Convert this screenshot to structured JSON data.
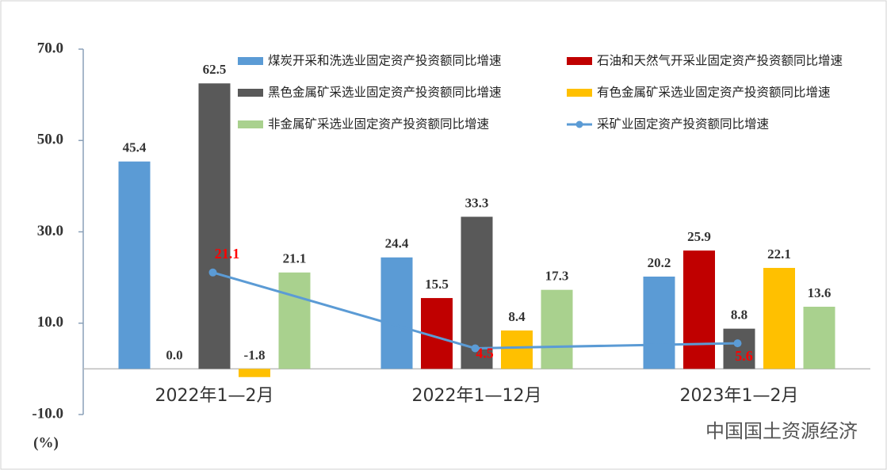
{
  "chart_data": {
    "type": "bar",
    "categories": [
      "2022年1—2月",
      "2022年1—12月",
      "2023年1—2月"
    ],
    "series": [
      {
        "name": "煤炭开采和洗选业固定资产投资额同比增速",
        "color": "#5b9bd5",
        "values": [
          45.4,
          24.4,
          20.2
        ],
        "value_labels": [
          "45.4",
          "24.4",
          "20.2"
        ]
      },
      {
        "name": "石油和天然气开采业固定资产投资额同比增速",
        "color": "#c00000",
        "values": [
          0,
          15.5,
          25.9
        ],
        "value_labels": [
          "0.0",
          "15.5",
          "25.9"
        ]
      },
      {
        "name": "黑色金属矿采选业固定资产投资额同比增速",
        "color": "#595959",
        "values": [
          62.5,
          33.3,
          8.8
        ],
        "value_labels": [
          "62.5",
          "33.3",
          "8.8"
        ]
      },
      {
        "name": "有色金属矿采选业固定资产投资额同比增速",
        "color": "#ffc000",
        "values": [
          -1.8,
          8.4,
          22.1
        ],
        "value_labels": [
          "-1.8",
          "8.4",
          "22.1"
        ]
      },
      {
        "name": "非金属矿采选业固定资产投资额同比增速",
        "color": "#a9d18e",
        "values": [
          21.1,
          17.3,
          13.6
        ],
        "value_labels": [
          "21.1",
          "17.3",
          "13.6"
        ]
      },
      {
        "name": "采矿业固定资产投资额同比增速",
        "type": "line",
        "color": "#5b9bd5",
        "label_color": "#ff0000",
        "values": [
          21.1,
          4.5,
          5.6
        ],
        "value_labels": [
          "21.1",
          "4.5",
          "5.6"
        ]
      }
    ],
    "ylim": [
      -10,
      70
    ],
    "yticks": [
      {
        "value": -10,
        "label": "-10.0"
      },
      {
        "value": 10,
        "label": "10.0"
      },
      {
        "value": 30,
        "label": "30.0"
      },
      {
        "value": 50,
        "label": "50.0"
      },
      {
        "value": 70,
        "label": "70.0"
      }
    ],
    "y_unit": "(%)",
    "watermark": "中国国土资源经济"
  }
}
